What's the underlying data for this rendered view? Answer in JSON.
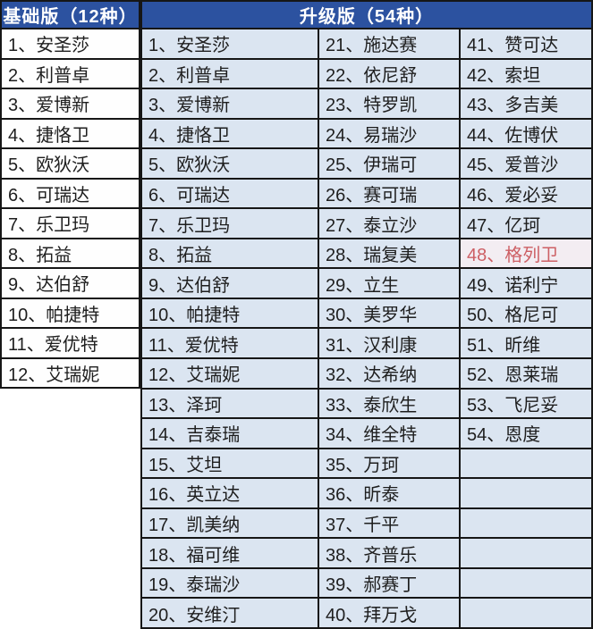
{
  "colors": {
    "header_bg": "#2c52a0",
    "header_text": "#ffffff",
    "basic_cell_bg": "#fefefe",
    "upgrade_cell_bg": "#dbe5f1",
    "border": "#161616",
    "text": "#1e1e1e",
    "highlight_text": "#cd5f64",
    "highlight_bg": "#f3edf2"
  },
  "basic_table": {
    "header": "基础版（12种）",
    "rows": [
      "1、安圣莎",
      "2、利普卓",
      "3、爱博新",
      "4、捷恪卫",
      "5、欧狄沃",
      "6、可瑞达",
      "7、乐卫玛",
      "8、拓益",
      "9、达伯舒",
      "10、帕捷特",
      "11、爱优特",
      "12、艾瑞妮"
    ]
  },
  "upgrade_table": {
    "header": "升级版（54种）",
    "columns": [
      [
        "1、安圣莎",
        "2、利普卓",
        "3、爱博新",
        "4、捷恪卫",
        "5、欧狄沃",
        "6、可瑞达",
        "7、乐卫玛",
        "8、拓益",
        "9、达伯舒",
        "10、帕捷特",
        "11、爱优特",
        "12、艾瑞妮",
        "13、泽珂",
        "14、吉泰瑞",
        "15、艾坦",
        "16、英立达",
        "17、凯美纳",
        "18、福可维",
        "19、泰瑞沙",
        "20、安维汀"
      ],
      [
        "21、施达赛",
        "22、依尼舒",
        "23、特罗凯",
        "24、易瑞沙",
        "25、伊瑞可",
        "26、赛可瑞",
        "27、泰立沙",
        "28、瑞复美",
        "29、立生",
        "30、美罗华",
        "31、汉利康",
        "32、达希纳",
        "33、泰欣生",
        "34、维全特",
        "35、万珂",
        "36、昕泰",
        "37、千平",
        "38、齐普乐",
        "39、郝赛丁",
        "40、拜万戈"
      ],
      [
        "41、赞可达",
        "42、索坦",
        "43、多吉美",
        "44、佐博伏",
        "45、爱普沙",
        "46、爱必妥",
        "47、亿珂",
        "48、格列卫",
        "49、诺利宁",
        "50、格尼可",
        "51、昕维",
        "52、恩莱瑞",
        "53、飞尼妥",
        "54、恩度",
        "",
        "",
        "",
        "",
        "",
        ""
      ]
    ],
    "highlight": {
      "column": 2,
      "row": 7
    }
  },
  "chart_data": {
    "type": "table",
    "tables": [
      {
        "title": "基础版（12种）",
        "items": [
          "安圣莎",
          "利普卓",
          "爱博新",
          "捷恪卫",
          "欧狄沃",
          "可瑞达",
          "乐卫玛",
          "拓益",
          "达伯舒",
          "帕捷特",
          "爱优特",
          "艾瑞妮"
        ]
      },
      {
        "title": "升级版（54种）",
        "items": [
          "安圣莎",
          "利普卓",
          "爱博新",
          "捷恪卫",
          "欧狄沃",
          "可瑞达",
          "乐卫玛",
          "拓益",
          "达伯舒",
          "帕捷特",
          "爱优特",
          "艾瑞妮",
          "泽珂",
          "吉泰瑞",
          "艾坦",
          "英立达",
          "凯美纳",
          "福可维",
          "泰瑞沙",
          "安维汀",
          "施达赛",
          "依尼舒",
          "特罗凯",
          "易瑞沙",
          "伊瑞可",
          "赛可瑞",
          "泰立沙",
          "瑞复美",
          "立生",
          "美罗华",
          "汉利康",
          "达希纳",
          "泰欣生",
          "维全特",
          "万珂",
          "昕泰",
          "千平",
          "齐普乐",
          "郝赛丁",
          "拜万戈",
          "赞可达",
          "索坦",
          "多吉美",
          "佐博伏",
          "爱普沙",
          "爱必妥",
          "亿珂",
          "格列卫",
          "诺利宁",
          "格尼可",
          "昕维",
          "恩莱瑞",
          "飞尼妥",
          "恩度"
        ],
        "highlighted_item": "格列卫"
      }
    ]
  }
}
